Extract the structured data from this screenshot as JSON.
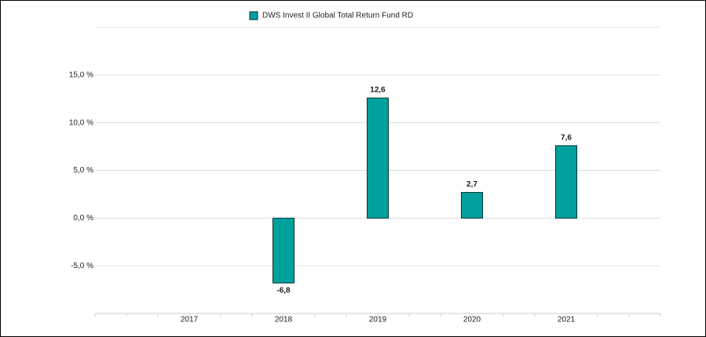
{
  "chart_data": {
    "type": "bar",
    "categories": [
      "2017",
      "2018",
      "2019",
      "2020",
      "2021"
    ],
    "series": [
      {
        "name": "DWS Invest II Global Total Return Fund  RD",
        "color": "#00a19c",
        "values": [
          null,
          -6.8,
          12.6,
          2.7,
          7.6
        ],
        "value_labels": [
          null,
          "-6,8",
          "12,6",
          "2,7",
          "7,6"
        ]
      }
    ],
    "ylim": [
      -10,
      20
    ],
    "yticks": [
      {
        "value": -5,
        "label": "-5,0 %"
      },
      {
        "value": 0,
        "label": "0,0 %"
      },
      {
        "value": 5,
        "label": "5,0 %"
      },
      {
        "value": 10,
        "label": "10,0 %"
      },
      {
        "value": 15,
        "label": "15,0 %"
      }
    ],
    "grid": true,
    "legend": "top"
  }
}
